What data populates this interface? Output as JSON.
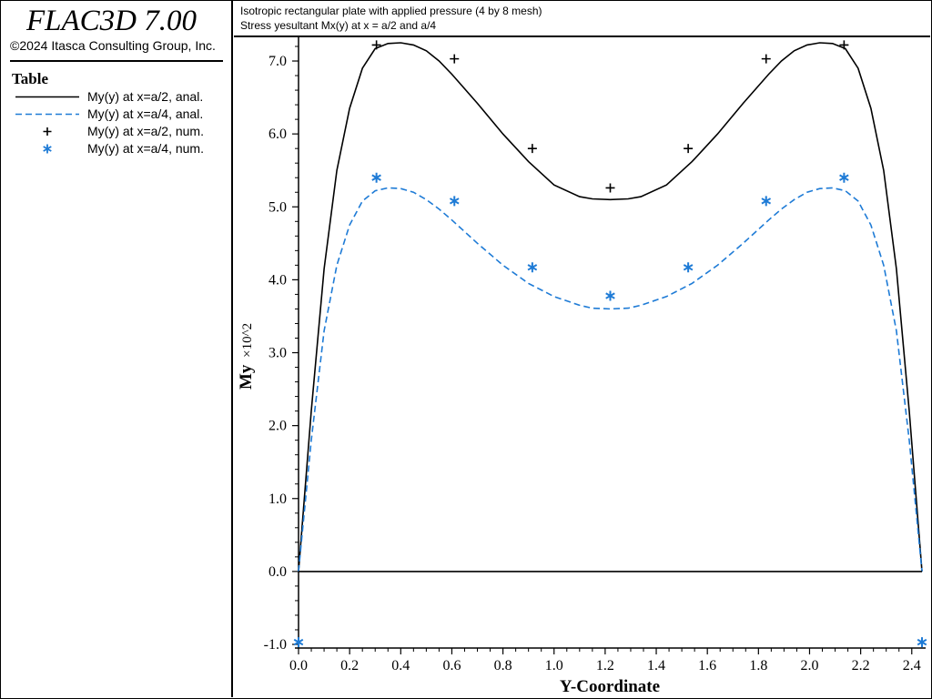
{
  "app": {
    "title": "FLAC3D 7.00",
    "copyright": "©2024 Itasca Consulting Group, Inc."
  },
  "legend": {
    "title": "Table",
    "items": [
      {
        "label": "My(y) at x=a/2, anal.",
        "style": "solid-line",
        "color": "#000000"
      },
      {
        "label": "My(y) at x=a/4, anal.",
        "style": "dashed-line",
        "color": "#1e7bd6"
      },
      {
        "label": "My(y) at x=a/2, num.",
        "style": "plus-marker",
        "color": "#000000"
      },
      {
        "label": "My(y) at x=a/4, num.",
        "style": "asterisk-marker",
        "color": "#1e7bd6"
      }
    ]
  },
  "header": {
    "line1": "Isotropic rectangular plate with applied pressure (4 by 8 mesh)",
    "line2": "Stress yesultant Mx(y) at x = a/2 and a/4"
  },
  "chart_data": {
    "type": "line",
    "xlabel": "Y-Coordinate",
    "ylabel_main": "My",
    "ylabel_suffix": "×10^2",
    "xlim": [
      0.0,
      2.44
    ],
    "ylim": [
      -1.0,
      7.25
    ],
    "x_ticks": [
      "0.0",
      "0.2",
      "0.4",
      "0.6",
      "0.8",
      "1.0",
      "1.2",
      "1.4",
      "1.6",
      "1.8",
      "2.0",
      "2.2",
      "2.4"
    ],
    "y_ticks": [
      "-1.0",
      "0.0",
      "1.0",
      "2.0",
      "3.0",
      "4.0",
      "5.0",
      "6.0",
      "7.0"
    ],
    "grid": false,
    "series": [
      {
        "name": "My(y) at x=a/2, anal.",
        "kind": "line",
        "dash": false,
        "color": "#000000",
        "x": [
          0.0,
          0.05,
          0.1,
          0.15,
          0.2,
          0.25,
          0.3,
          0.35,
          0.4,
          0.45,
          0.5,
          0.55,
          0.6,
          0.7,
          0.8,
          0.9,
          1.0,
          1.1,
          1.15,
          1.22,
          1.29,
          1.34,
          1.44,
          1.54,
          1.64,
          1.74,
          1.84,
          1.89,
          1.94,
          1.99,
          2.04,
          2.09,
          2.14,
          2.19,
          2.24,
          2.29,
          2.34,
          2.39,
          2.44
        ],
        "y": [
          0.0,
          2.2,
          4.15,
          5.5,
          6.35,
          6.9,
          7.17,
          7.24,
          7.25,
          7.22,
          7.14,
          7.0,
          6.82,
          6.42,
          6.0,
          5.62,
          5.3,
          5.14,
          5.11,
          5.1,
          5.11,
          5.14,
          5.3,
          5.62,
          6.0,
          6.42,
          6.82,
          7.0,
          7.14,
          7.22,
          7.25,
          7.24,
          7.17,
          6.9,
          6.35,
          5.5,
          4.15,
          2.2,
          0.0
        ]
      },
      {
        "name": "My(y) at x=a/4, anal.",
        "kind": "line",
        "dash": true,
        "color": "#1e7bd6",
        "x": [
          0.0,
          0.05,
          0.1,
          0.15,
          0.2,
          0.25,
          0.3,
          0.35,
          0.4,
          0.45,
          0.5,
          0.55,
          0.6,
          0.7,
          0.8,
          0.9,
          1.0,
          1.1,
          1.15,
          1.22,
          1.29,
          1.34,
          1.44,
          1.54,
          1.64,
          1.74,
          1.84,
          1.89,
          1.94,
          1.99,
          2.04,
          2.09,
          2.14,
          2.19,
          2.24,
          2.29,
          2.34,
          2.39,
          2.44
        ],
        "y": [
          0.0,
          1.8,
          3.3,
          4.2,
          4.75,
          5.08,
          5.22,
          5.26,
          5.25,
          5.2,
          5.1,
          4.97,
          4.82,
          4.5,
          4.2,
          3.95,
          3.77,
          3.65,
          3.61,
          3.6,
          3.61,
          3.65,
          3.77,
          3.95,
          4.2,
          4.5,
          4.82,
          4.97,
          5.1,
          5.2,
          5.25,
          5.26,
          5.22,
          5.08,
          4.75,
          4.2,
          3.3,
          1.8,
          0.0
        ]
      },
      {
        "name": "My(y) at x=a/2, num.",
        "kind": "marker",
        "marker": "+",
        "color": "#000000",
        "x": [
          0.305,
          0.61,
          0.915,
          1.22,
          1.525,
          1.83,
          2.135
        ],
        "y": [
          7.22,
          7.03,
          5.8,
          5.26,
          5.8,
          7.03,
          7.22
        ]
      },
      {
        "name": "My(y) at x=a/4, num.",
        "kind": "marker",
        "marker": "*",
        "color": "#1e7bd6",
        "x": [
          0.0,
          0.305,
          0.61,
          0.915,
          1.22,
          1.525,
          1.83,
          2.135,
          2.44
        ],
        "y": [
          -0.97,
          5.4,
          5.08,
          4.17,
          3.78,
          4.17,
          5.08,
          5.4,
          -0.97
        ]
      },
      {
        "name": "",
        "kind": "line",
        "dash": false,
        "color": "#000000",
        "x": [
          0.0,
          2.44
        ],
        "y": [
          0.0,
          0.0
        ]
      }
    ]
  }
}
